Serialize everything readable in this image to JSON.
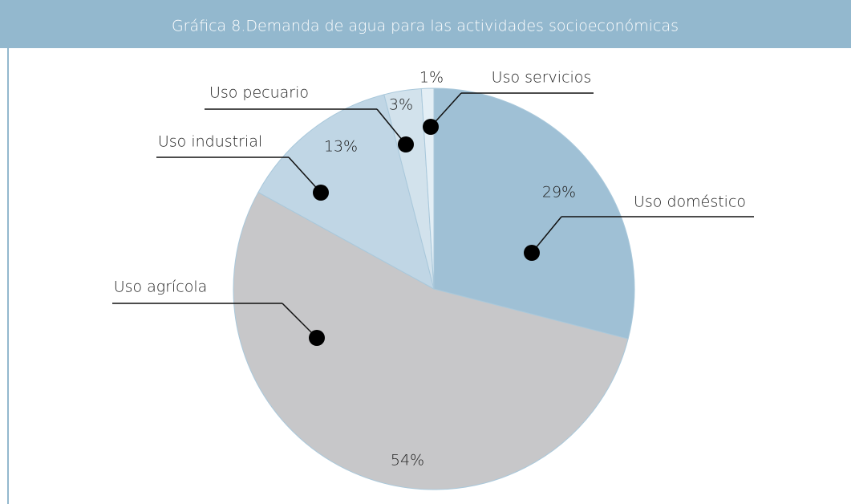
{
  "chart_data": {
    "type": "pie",
    "title": "Gráfica 8.Demanda de agua para las actividades socioeconómicas",
    "categories": [
      "Uso doméstico",
      "Uso agrícola",
      "Uso industrial",
      "Uso pecuario",
      "Uso servicios"
    ],
    "values": [
      29,
      54,
      13,
      3,
      1
    ],
    "value_labels": [
      "29%",
      "54%",
      "13%",
      "3%",
      "1%"
    ],
    "colors": [
      "#9fc0d5",
      "#c7c7c9",
      "#c0d6e5",
      "#d2e2ec",
      "#e3eef5"
    ]
  }
}
